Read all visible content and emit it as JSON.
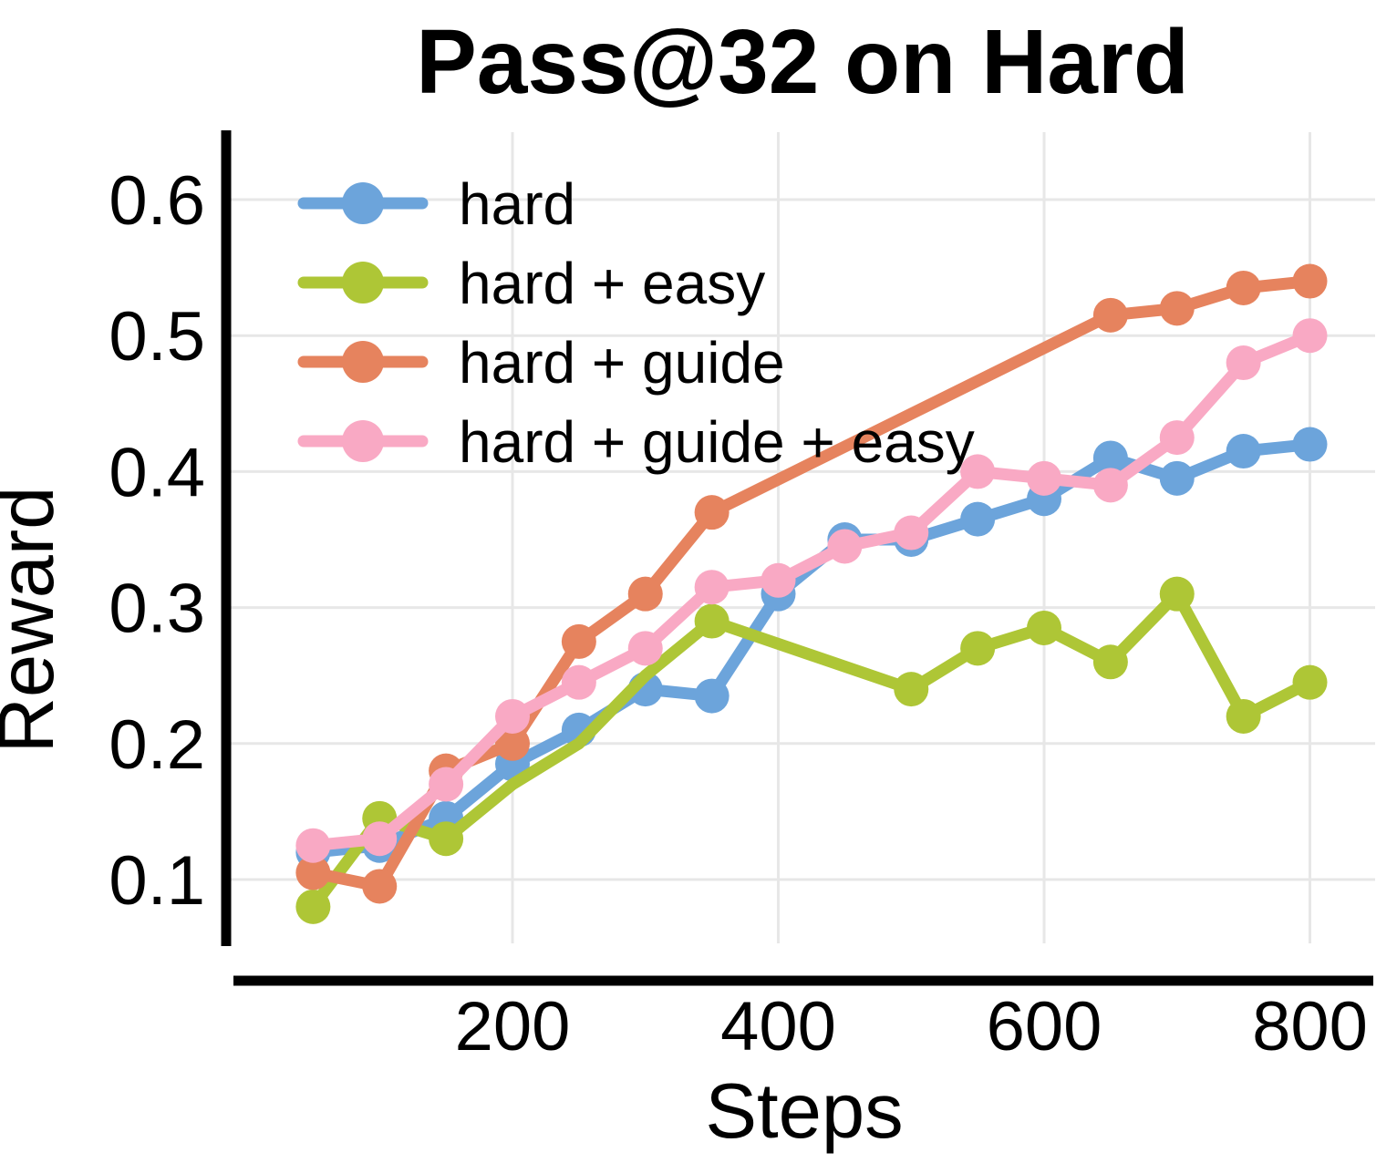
{
  "title": "Pass@32 on Hard",
  "axes": {
    "x_label": "Steps",
    "y_label": "Reward",
    "x_ticks": [
      200,
      400,
      600,
      800
    ],
    "y_ticks": [
      0.1,
      0.2,
      0.3,
      0.4,
      0.5,
      0.6
    ]
  },
  "legend": {
    "items": [
      "hard",
      "hard + easy",
      "hard + guide",
      "hard + guide + easy"
    ]
  },
  "colors": {
    "hard": "#6CA4DB",
    "hard_easy": "#AEC636",
    "hard_guide": "#E6835E",
    "hard_guide_easy": "#F9A9C4",
    "gridline": "#e7e7e7",
    "spine": "#000000",
    "background": "#ffffff"
  },
  "chart_data": {
    "type": "line",
    "title": "Pass@32 on Hard",
    "xlabel": "Steps",
    "ylabel": "Reward",
    "xlim": [
      -15,
      850
    ],
    "ylim": [
      0.05,
      0.65
    ],
    "x_ticks": [
      200,
      400,
      600,
      800
    ],
    "y_ticks": [
      0.1,
      0.2,
      0.3,
      0.4,
      0.5,
      0.6
    ],
    "grid": true,
    "legend_position": "upper left",
    "series": [
      {
        "name": "hard",
        "color": "#6CA4DB",
        "x": [
          50,
          100,
          150,
          200,
          250,
          300,
          350,
          400,
          450,
          500,
          550,
          600,
          650,
          700,
          750,
          800
        ],
        "y": [
          0.12,
          0.125,
          0.145,
          0.185,
          0.21,
          0.24,
          0.235,
          0.31,
          0.35,
          0.35,
          0.365,
          0.38,
          0.41,
          0.395,
          0.415,
          0.42
        ]
      },
      {
        "name": "hard + easy",
        "color": "#AEC636",
        "x": [
          50,
          100,
          150,
          200,
          250,
          300,
          350,
          500,
          550,
          600,
          650,
          700,
          750,
          800
        ],
        "y": [
          0.08,
          0.145,
          0.13,
          0.17,
          0.2,
          0.25,
          0.29,
          0.24,
          0.27,
          0.285,
          0.26,
          0.31,
          0.22,
          0.245
        ],
        "hidden_markers": [
          200,
          250,
          300
        ]
      },
      {
        "name": "hard + guide",
        "color": "#E6835E",
        "x": [
          50,
          100,
          150,
          200,
          250,
          300,
          350,
          650,
          700,
          750,
          800
        ],
        "y": [
          0.105,
          0.095,
          0.18,
          0.2,
          0.275,
          0.31,
          0.37,
          0.515,
          0.52,
          0.535,
          0.54
        ]
      },
      {
        "name": "hard + guide + easy",
        "color": "#F9A9C4",
        "x": [
          50,
          100,
          150,
          200,
          250,
          300,
          350,
          400,
          450,
          500,
          550,
          600,
          650,
          700,
          750,
          800
        ],
        "y": [
          0.125,
          0.13,
          0.17,
          0.22,
          0.245,
          0.27,
          0.315,
          0.32,
          0.345,
          0.355,
          0.4,
          0.395,
          0.39,
          0.425,
          0.48,
          0.5
        ]
      }
    ]
  }
}
